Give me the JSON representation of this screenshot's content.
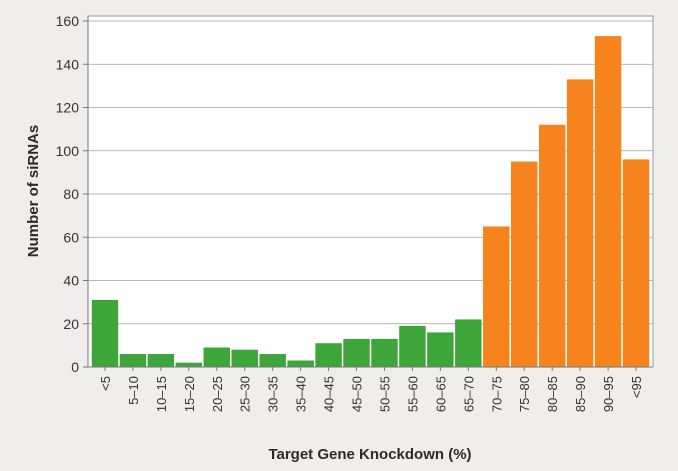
{
  "chart_data": {
    "type": "bar",
    "title": "",
    "xlabel": "Target Gene Knockdown (%)",
    "ylabel": "Number of siRNAs",
    "ylim": [
      0,
      160
    ],
    "yticks": [
      0,
      20,
      40,
      60,
      80,
      100,
      120,
      140,
      160
    ],
    "grid": true,
    "categories": [
      "<5",
      "5–10",
      "10–15",
      "15–20",
      "20–25",
      "25–30",
      "30–35",
      "35–40",
      "40–45",
      "45–50",
      "50–55",
      "55–60",
      "60–65",
      "65–70",
      "70–75",
      "75–80",
      "80–85",
      "85–90",
      "90–95",
      "<95"
    ],
    "values": [
      31,
      6,
      6,
      2,
      9,
      8,
      6,
      3,
      11,
      13,
      13,
      19,
      16,
      22,
      65,
      95,
      112,
      133,
      153,
      96
    ],
    "bar_colors": {
      "low": "#3ea53a",
      "high": "#f7831f"
    },
    "highlight_from_index": 14
  }
}
